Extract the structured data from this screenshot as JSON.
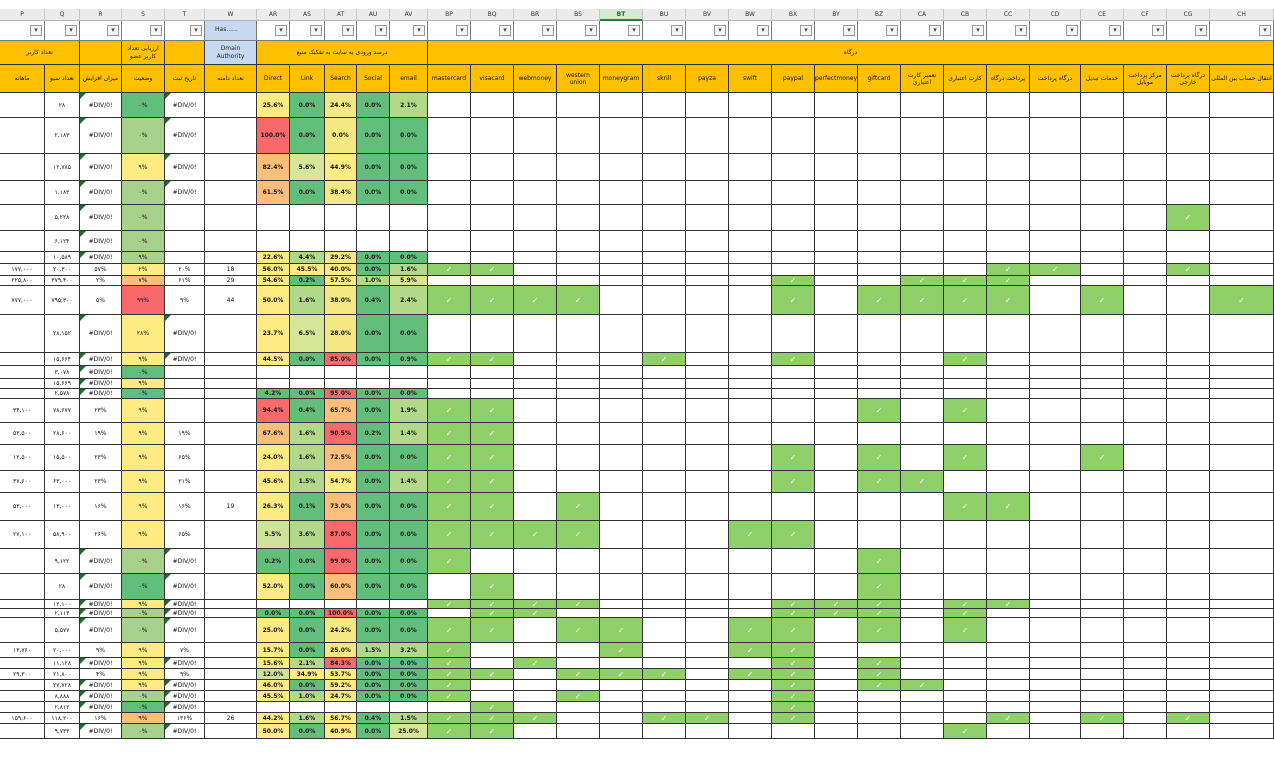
{
  "columns": [
    "P",
    "Q",
    "R",
    "S",
    "T",
    "W",
    "AR",
    "AS",
    "AT",
    "AU",
    "AV",
    "BP",
    "BQ",
    "BR",
    "BS",
    "BT",
    "BU",
    "BV",
    "BW",
    "BX",
    "BY",
    "BZ",
    "CA",
    "CB",
    "CC",
    "CD",
    "CE",
    "CF",
    "CG",
    "CH"
  ],
  "selected_column": "BT",
  "filter_button_label": "▾",
  "w_filter_text": "Has......",
  "group_headers": [
    {
      "label": "تعداد کاربر",
      "first": 0,
      "last": 1,
      "color": "#ffc000"
    },
    {
      "label": "",
      "first": 2,
      "last": 2,
      "color": "#ffc000"
    },
    {
      "label": "ارزیابی تعداد کاربر عضو",
      "first": 3,
      "last": 3,
      "color": "#ffc000"
    },
    {
      "label": "",
      "first": 4,
      "last": 4,
      "color": "#ffc000"
    },
    {
      "label": "Dmain Authority",
      "first": 5,
      "last": 5,
      "color": "#c6d9f0"
    },
    {
      "label": "درصد ورودی به سایت به تفکیک منبع",
      "first": 6,
      "last": 10,
      "color": "#ffc000"
    },
    {
      "label": "درگاه",
      "first": 11,
      "last": 29,
      "color": "#ffc000"
    }
  ],
  "sub_headers": [
    "ماهانه",
    "تعداد سیو",
    "میزان افزایش",
    "وضعیت",
    "تاریخ ثبت",
    "تعداد دامنه",
    "Direct",
    "Link",
    "Search",
    "Social",
    "email",
    "mastercard",
    "visacard",
    "webmoney",
    "western union",
    "moneygram",
    "skrill",
    "payza",
    "swift",
    "paypal",
    "perfectmoney",
    "giftcard",
    "تعمیر کارت اعتباری",
    "کارت اعتباری",
    "پرداخت درگاه",
    "درگاه پرداخت",
    "خدمات تبدیل",
    "مرکز پرداخت موبایل",
    "درگاه پرداخت خارجی",
    "انتقال حساب بین المللی"
  ],
  "status_colors": {
    "green": "#63be7b",
    "light": "#a9d18e",
    "yellow": "#ffeb84",
    "orange": "#fcbf7b",
    "red": "#f8696b",
    "white": "#ffffff"
  },
  "rows": [
    {
      "q": "۲۸",
      "r": "#DIV/0!",
      "s": "۰%",
      "sc": "green",
      "t": "#DIV/0!",
      "direct": "25.6%",
      "link": "0.0%",
      "search": "24.4%",
      "social": "0.0%",
      "email": "2.1%",
      "checks": []
    },
    {
      "q": "۲,۱۸۳",
      "r": "#DIV/0!",
      "s": "۰%",
      "sc": "light",
      "t": "#DIV/0!",
      "direct": "100.0%",
      "link": "0.0%",
      "search": "0.0%",
      "social": "0.0%",
      "email": "0.0%",
      "checks": []
    },
    {
      "q": "۱۲,۷۸۵",
      "r": "#DIV/0!",
      "s": "۹%",
      "sc": "yellow",
      "t": "#DIV/0!",
      "direct": "82.4%",
      "link": "5.6%",
      "search": "44.9%",
      "social": "0.0%",
      "email": "0.0%",
      "checks": []
    },
    {
      "q": "۱,۱۸۳",
      "r": "#DIV/0!",
      "s": "۰%",
      "sc": "light",
      "t": "#DIV/0!",
      "direct": "61.5%",
      "link": "0.0%",
      "search": "38.4%",
      "social": "0.0%",
      "email": "0.0%",
      "checks": []
    },
    {
      "q": "۵,۲۲۸",
      "r": "#DIV/0!",
      "s": "۰%",
      "sc": "light",
      "checks": [
        28
      ]
    },
    {
      "q": "۶,۱۲۴",
      "r": "#DIV/0!",
      "s": "۰%",
      "sc": "light",
      "checks": []
    },
    {
      "q": "۱۰,۵۸۹",
      "r": "#DIV/0!",
      "s": "۹%",
      "sc": "light",
      "direct": "22.6%",
      "link": "4.4%",
      "search": "29.2%",
      "social": "0.0%",
      "email": "0.0%",
      "checks": []
    },
    {
      "p": "۱۷۷,۰۰۰",
      "q": "۲۰,۳۰۰",
      "r": "۵۷%",
      "s": "۲%",
      "sc": "yellow",
      "t": "۲۰%",
      "w": "18",
      "direct": "56.0%",
      "link": "45.5%",
      "search": "40.0%",
      "social": "0.0%",
      "email": "1.6%",
      "checks": [
        11,
        12,
        24,
        25,
        28
      ]
    },
    {
      "p": "۲۲۵,۸۰۰",
      "q": "۳۷۹,۴۰۰",
      "r": "۲%",
      "s": "۷%",
      "sc": "orange",
      "t": "۶۱%",
      "w": "29",
      "direct": "54.6%",
      "link": "0.2%",
      "search": "57.5%",
      "social": "1.0%",
      "email": "5.9%",
      "checks": [
        19,
        22,
        23,
        24
      ]
    },
    {
      "p": "۷۷۷,۰۰۰",
      "q": "۷۹۵,۳۰۰",
      "r": "۵%",
      "s": "۹۹%",
      "sc": "red",
      "t": "۹%",
      "w": "44",
      "direct": "50.0%",
      "link": "1.6%",
      "search": "38.0%",
      "social": "0.4%",
      "email": "2.4%",
      "checks": [
        11,
        12,
        13,
        14,
        19,
        21,
        22,
        23,
        24,
        26,
        29
      ]
    },
    {
      "q": "۲۸,۱۵۲",
      "r": "#DIV/0!",
      "s": "۲۸%",
      "sc": "yellow",
      "t": "#DIV/0!",
      "direct": "23.7%",
      "link": "6.5%",
      "search": "28.0%",
      "social": "0.0%",
      "email": "0.0%",
      "checks": []
    },
    {
      "q": "۱۵,۶۶۴",
      "r": "#DIV/0!",
      "s": "۹%",
      "sc": "yellow",
      "t": "#DIV/0!",
      "direct": "44.5%",
      "link": "0.0%",
      "search": "85.0%",
      "social": "0.0%",
      "email": "0.9%",
      "checks": [
        11,
        12,
        16,
        19,
        23
      ]
    },
    {
      "q": "۳,۰۷۸",
      "r": "#DIV/0!",
      "s": "۰%",
      "sc": "green",
      "checks": []
    },
    {
      "q": "۱۵,۶۶۹",
      "r": "#DIV/0!",
      "s": "۹%",
      "sc": "yellow",
      "checks": []
    },
    {
      "q": "۲,۵۷۸",
      "r": "#DIV/0!",
      "s": "۰%",
      "sc": "green",
      "direct": "4.2%",
      "link": "0.0%",
      "search": "95.0%",
      "social": "0.0%",
      "email": "0.0%",
      "checks": []
    },
    {
      "p": "۳۴,۱۰۰",
      "q": "۷۸,۶۷۷",
      "r": "۲۳%",
      "s": "۹%",
      "sc": "yellow",
      "direct": "94.4%",
      "link": "0.4%",
      "search": "65.7%",
      "social": "0.0%",
      "email": "1.9%",
      "checks": [
        11,
        12,
        21,
        23
      ]
    },
    {
      "p": "۵۳,۵۰۰",
      "q": "۲۸,۶۰۰",
      "r": "۱۹%",
      "s": "۹%",
      "sc": "yellow",
      "t": "۱۹%",
      "direct": "67.6%",
      "link": "1.6%",
      "search": "90.5%",
      "social": "0.2%",
      "email": "1.4%",
      "checks": [
        11,
        12
      ]
    },
    {
      "p": "۱۲,۵۰۰",
      "q": "۱۵,۵۰۰",
      "r": "۲۳%",
      "s": "۹%",
      "sc": "yellow",
      "t": "۶۵%",
      "direct": "24.0%",
      "link": "1.6%",
      "search": "72.5%",
      "social": "0.0%",
      "email": "0.0%",
      "checks": [
        11,
        12,
        19,
        21,
        23,
        26
      ]
    },
    {
      "p": "۳۷,۶۰۰",
      "q": "۶۳,۰۰۰",
      "r": "۲۳%",
      "s": "۹%",
      "sc": "yellow",
      "t": "۲۱%",
      "direct": "45.6%",
      "link": "1.5%",
      "search": "54.7%",
      "social": "0.0%",
      "email": "1.4%",
      "checks": [
        11,
        12,
        19,
        21,
        22
      ]
    },
    {
      "p": "۵۳,۰۰۰",
      "q": "۱۳,۰۰۰",
      "r": "۱۶%",
      "s": "۹%",
      "sc": "yellow",
      "t": "۱۶%",
      "w": "19",
      "direct": "26.3%",
      "link": "0.1%",
      "search": "73.0%",
      "social": "0.0%",
      "email": "0.0%",
      "checks": [
        11,
        12,
        14,
        23,
        24
      ]
    },
    {
      "p": "۲۷,۱۰۰",
      "q": "۵۸,۹۰۰",
      "r": "۲۶%",
      "s": "۹%",
      "sc": "yellow",
      "t": "۶۵%",
      "direct": "5.5%",
      "link": "3.6%",
      "search": "87.0%",
      "social": "0.0%",
      "email": "0.0%",
      "checks": [
        11,
        12,
        13,
        14,
        18,
        19
      ]
    },
    {
      "q": "۹,۱۲۲",
      "r": "#DIV/0!",
      "s": "۰%",
      "sc": "light",
      "t": "#DIV/0!",
      "direct": "0.2%",
      "link": "0.0%",
      "search": "99.0%",
      "social": "0.0%",
      "email": "0.0%",
      "checks": [
        11,
        21
      ]
    },
    {
      "q": "۲۸",
      "r": "#DIV/0!",
      "s": "۰%",
      "sc": "green",
      "t": "#DIV/0!",
      "direct": "52.0%",
      "link": "0.0%",
      "search": "60.0%",
      "social": "0.0%",
      "email": "0.0%",
      "checks": [
        12,
        21
      ]
    },
    {
      "q": "۱۲,۱۰۰",
      "r": "#DIV/0!",
      "s": "۹%",
      "sc": "yellow",
      "t": "#DIV/0!",
      "direct": "",
      "link": "",
      "search": "",
      "social": "",
      "email": "",
      "checks": [
        11,
        12,
        13,
        14,
        19,
        20,
        21,
        23,
        24
      ]
    },
    {
      "q": "۲,۱۱۳",
      "r": "#DIV/0!",
      "s": "۰%",
      "sc": "light",
      "t": "#DIV/0!",
      "direct": "0.0%",
      "link": "0.0%",
      "search": "100.0%",
      "social": "0.0%",
      "email": "0.0%",
      "checks": [
        12,
        13,
        19,
        20,
        21,
        23
      ]
    },
    {
      "q": "۵,۵۷۷",
      "r": "#DIV/0!",
      "s": "۰%",
      "sc": "light",
      "t": "#DIV/0!",
      "direct": "25.0%",
      "link": "0.0%",
      "search": "24.2%",
      "social": "0.0%",
      "email": "0.0%",
      "checks": [
        11,
        12,
        14,
        15,
        18,
        19,
        21,
        23
      ]
    },
    {
      "p": "۱۳,۷۶۰",
      "q": "۲۰,۰۰۰",
      "r": "۹%",
      "s": "۹%",
      "sc": "yellow",
      "t": "۷%",
      "direct": "15.7%",
      "link": "0.0%",
      "search": "25.0%",
      "social": "1.5%",
      "email": "3.2%",
      "checks": [
        11,
        15,
        18,
        19
      ]
    },
    {
      "q": "۱۱,۱۲۸",
      "r": "#DIV/0!",
      "s": "۹%",
      "sc": "yellow",
      "t": "#DIV/0!",
      "direct": "15.6%",
      "link": "2.1%",
      "search": "84.3%",
      "social": "0.0%",
      "email": "0.0%",
      "checks": [
        11,
        13,
        19,
        21
      ]
    },
    {
      "p": "۲۹,۳۰۰",
      "q": "۲۱,۸۰۰",
      "r": "۴%",
      "s": "۹%",
      "sc": "yellow",
      "t": "۹%",
      "direct": "12.0%",
      "link": "34.9%",
      "search": "53.7%",
      "social": "0.0%",
      "email": "0.0%",
      "checks": [
        11,
        12,
        14,
        15,
        16,
        18,
        19,
        21
      ]
    },
    {
      "q": "۲۷,۷۲۸",
      "r": "#DIV/0!",
      "s": "۹%",
      "sc": "yellow",
      "t": "#DIV/0!",
      "direct": "46.0%",
      "link": "0.0%",
      "search": "59.2%",
      "social": "0.0%",
      "email": "0.0%",
      "checks": [
        11,
        19,
        21,
        22
      ]
    },
    {
      "q": "۸,۸۸۸",
      "r": "#DIV/0!",
      "s": "۰%",
      "sc": "light",
      "t": "#DIV/0!",
      "direct": "45.5%",
      "link": "1.0%",
      "search": "24.7%",
      "social": "0.0%",
      "email": "0.0%",
      "checks": [
        11,
        14,
        19
      ]
    },
    {
      "q": "۲,۸۱۲",
      "r": "#DIV/0!",
      "s": "۰%",
      "sc": "green",
      "t": "#DIV/0!",
      "checks": [
        12,
        19
      ]
    },
    {
      "p": "۱۵۹,۶۰۰",
      "q": "۱۱۸,۲۰۰",
      "r": "۱۶%",
      "s": "۹%",
      "sc": "orange",
      "t": "۱۳۶%",
      "w": "26",
      "direct": "44.2%",
      "link": "1.6%",
      "search": "56.7%",
      "social": "0.4%",
      "email": "1.5%",
      "checks": [
        11,
        12,
        13,
        16,
        17,
        19,
        24,
        26,
        28
      ]
    },
    {
      "q": "۹,۷۳۳",
      "r": "#DIV/0!",
      "s": "۰%",
      "sc": "light",
      "t": "#DIV/0!",
      "direct": "50.0%",
      "link": "0.0%",
      "search": "40.9%",
      "social": "0.0%",
      "email": "25.0%",
      "checks": [
        11,
        12,
        23
      ]
    }
  ]
}
